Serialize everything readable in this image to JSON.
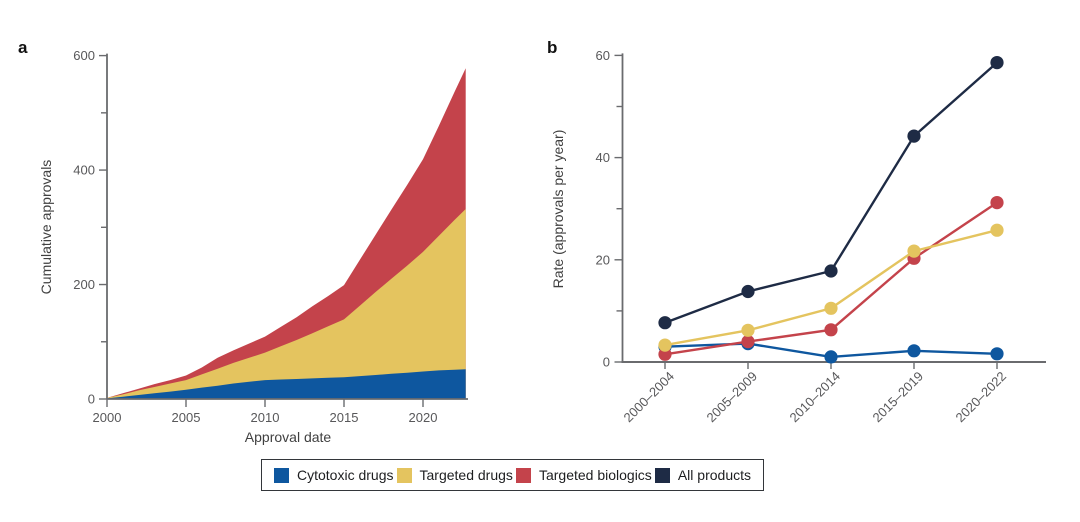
{
  "panels": {
    "a": {
      "label": "a"
    },
    "b": {
      "label": "b"
    }
  },
  "colors": {
    "cytotoxic": "#0e579f",
    "targeted_drugs": "#e4c45f",
    "targeted_biologics": "#c4434b",
    "all_products": "#1e2b45",
    "axis": "#6a6b6e",
    "tick_text": "#58585a",
    "axis_title_text": "#404040"
  },
  "legend": {
    "items": [
      {
        "label": "Cytotoxic drugs",
        "color_key": "cytotoxic"
      },
      {
        "label": "Targeted drugs",
        "color_key": "targeted_drugs"
      },
      {
        "label": "Targeted biologics",
        "color_key": "targeted_biologics"
      },
      {
        "label": "All products",
        "color_key": "all_products"
      }
    ]
  },
  "chart_data": [
    {
      "type": "area",
      "stacked": true,
      "panel": "a",
      "xlabel": "Approval date",
      "ylabel": "Cumulative approvals",
      "x": [
        2000,
        2001,
        2002,
        2003,
        2004,
        2005,
        2006,
        2007,
        2008,
        2009,
        2010,
        2011,
        2012,
        2013,
        2014,
        2015,
        2016,
        2017,
        2018,
        2019,
        2020,
        2021,
        2022,
        2022.7
      ],
      "series": [
        {
          "name": "Cytotoxic drugs",
          "key": "cytotoxic",
          "values": [
            1,
            4,
            7,
            10,
            13,
            16,
            20,
            23,
            27,
            30,
            33,
            34,
            35,
            36,
            37,
            38,
            40,
            42,
            44,
            46,
            48,
            50,
            51,
            52
          ]
        },
        {
          "name": "Targeted drugs",
          "key": "targeted_drugs",
          "values": [
            1,
            4,
            8,
            11,
            14,
            17,
            23,
            30,
            36,
            42,
            48,
            58,
            68,
            79,
            90,
            101,
            123,
            145,
            166,
            187,
            209,
            235,
            262,
            280
          ]
        },
        {
          "name": "Targeted biologics",
          "key": "targeted_biologics",
          "values": [
            0,
            2,
            3,
            5,
            6,
            8,
            12,
            19,
            22,
            25,
            28,
            34,
            40,
            47,
            53,
            60,
            80,
            100,
            121,
            141,
            162,
            192,
            224,
            246
          ]
        }
      ],
      "xticks": [
        2000,
        2005,
        2010,
        2015,
        2020
      ],
      "yticks": [
        0,
        200,
        400,
        600
      ],
      "yticks_minor": [
        100,
        300,
        500
      ],
      "xlim": [
        2000,
        2022.7
      ],
      "ylim": [
        0,
        600
      ],
      "grid": false
    },
    {
      "type": "line",
      "panel": "b",
      "xlabel": "",
      "ylabel": "Rate (approvals per year)",
      "categories": [
        "2000–2004",
        "2005–2009",
        "2010–2014",
        "2015–2019",
        "2020–2022"
      ],
      "series": [
        {
          "name": "Cytotoxic drugs",
          "key": "cytotoxic",
          "values": [
            3.0,
            3.6,
            1.0,
            2.2,
            1.6
          ]
        },
        {
          "name": "Targeted biologics",
          "key": "targeted_biologics",
          "values": [
            1.5,
            4.0,
            6.3,
            20.3,
            31.2
          ]
        },
        {
          "name": "Targeted drugs",
          "key": "targeted_drugs",
          "values": [
            3.3,
            6.2,
            10.5,
            21.7,
            25.8
          ]
        },
        {
          "name": "All products",
          "key": "all_products",
          "values": [
            7.7,
            13.8,
            17.8,
            44.2,
            58.6
          ]
        }
      ],
      "yticks": [
        0,
        20,
        40,
        60
      ],
      "yticks_minor": [
        10,
        30,
        50
      ],
      "ylim": [
        0,
        60
      ],
      "grid": false,
      "legend_position": "bottom"
    }
  ]
}
